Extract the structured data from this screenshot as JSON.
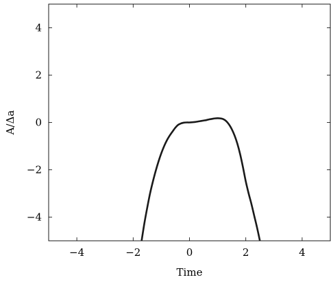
{
  "chart_data": {
    "type": "line",
    "xlabel": "Time",
    "ylabel": "A/Δa",
    "xlim": [
      -5,
      5
    ],
    "ylim": [
      -5,
      5
    ],
    "xticks": [
      -4,
      -2,
      0,
      2,
      4
    ],
    "yticks": [
      -4,
      -2,
      0,
      2,
      4
    ],
    "grid": false,
    "series": [
      {
        "color": "#1a1a1a",
        "x": [
          -1.7,
          -1.6,
          -1.5,
          -1.4,
          -1.3,
          -1.2,
          -1.1,
          -1.0,
          -0.9,
          -0.8,
          -0.7,
          -0.6,
          -0.5,
          -0.4,
          -0.3,
          -0.2,
          -0.1,
          0.0,
          0.1,
          0.2,
          0.3,
          0.4,
          0.5,
          0.6,
          0.7,
          0.8,
          0.9,
          1.0,
          1.1,
          1.2,
          1.3,
          1.4,
          1.5,
          1.6,
          1.7,
          1.8,
          1.9,
          2.0,
          2.1,
          2.2,
          2.3,
          2.4,
          2.5
        ],
        "y": [
          -5.0,
          -4.25,
          -3.6,
          -3.0,
          -2.5,
          -2.05,
          -1.65,
          -1.3,
          -1.0,
          -0.75,
          -0.55,
          -0.38,
          -0.22,
          -0.1,
          -0.04,
          -0.01,
          0.0,
          0.0,
          0.01,
          0.02,
          0.04,
          0.06,
          0.08,
          0.1,
          0.13,
          0.15,
          0.17,
          0.18,
          0.17,
          0.14,
          0.06,
          -0.08,
          -0.28,
          -0.55,
          -0.9,
          -1.35,
          -1.9,
          -2.5,
          -3.0,
          -3.45,
          -3.95,
          -4.45,
          -5.0
        ]
      }
    ]
  }
}
